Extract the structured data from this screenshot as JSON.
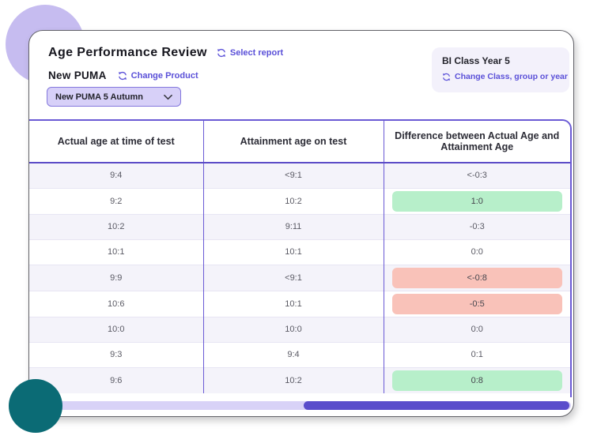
{
  "header": {
    "title": "Age Performance Review",
    "select_report_label": "Select report",
    "product_name": "New PUMA",
    "change_product_label": "Change Product",
    "product_dropdown_value": "New PUMA 5 Autumn"
  },
  "class_box": {
    "class_name": "BI Class Year 5",
    "change_class_label": "Change Class, group or year"
  },
  "table": {
    "columns": [
      "Actual age at time of test",
      "Attainment age on test",
      "Difference between Actual Age and Attainment Age"
    ],
    "rows": [
      {
        "actual": "9:4",
        "attainment": "<9:1",
        "difference": "<-0:3",
        "highlight": "none"
      },
      {
        "actual": "9:2",
        "attainment": "10:2",
        "difference": "1:0",
        "highlight": "green"
      },
      {
        "actual": "10:2",
        "attainment": "9:11",
        "difference": "-0:3",
        "highlight": "none"
      },
      {
        "actual": "10:1",
        "attainment": "10:1",
        "difference": "0:0",
        "highlight": "none"
      },
      {
        "actual": "9:9",
        "attainment": "<9:1",
        "difference": "<-0:8",
        "highlight": "red"
      },
      {
        "actual": "10:6",
        "attainment": "10:1",
        "difference": "-0:5",
        "highlight": "red"
      },
      {
        "actual": "10:0",
        "attainment": "10:0",
        "difference": "0:0",
        "highlight": "none"
      },
      {
        "actual": "9:3",
        "attainment": "9:4",
        "difference": "0:1",
        "highlight": "none"
      },
      {
        "actual": "9:6",
        "attainment": "10:2",
        "difference": "0:8",
        "highlight": "green"
      }
    ]
  },
  "icons": {
    "refresh": "circular-arrows-refresh",
    "chevron_down": "chevron-down"
  },
  "colors": {
    "accent_purple": "#5a50d8",
    "table_border": "#6a5ad5",
    "green_highlight": "#b7efca",
    "red_highlight": "#f9c2b9",
    "row_alt": "#f4f3fa",
    "scrollbar_thumb": "#5a4dcb",
    "scrollbar_track": "#d8d2f7",
    "circle_lavender": "#c6bcf0",
    "circle_teal": "#0b6b75"
  }
}
